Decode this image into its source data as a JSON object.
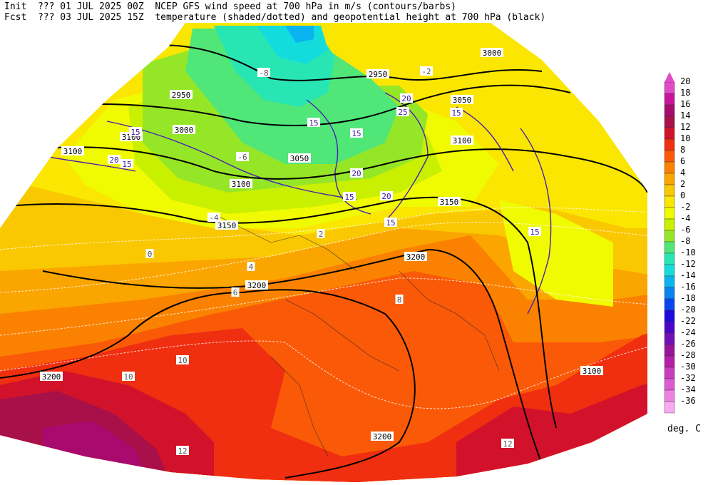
{
  "header": {
    "init_label": "Init",
    "init_value": "??? 01 JUL 2025 00Z",
    "fcst_label": "Fcst",
    "fcst_value": "??? 03 JUL 2025 15Z",
    "title_line1": "NCEP GFS wind speed at 700 hPa in m/s (contours/barbs)",
    "title_line2": "temperature (shaded/dotted) and geopotential height at 700 hPa (black)"
  },
  "colorbar": {
    "unit": "deg. C",
    "levels": [
      {
        "value": "20",
        "color": "#e04cc8"
      },
      {
        "value": "18",
        "color": "#c8159c"
      },
      {
        "value": "16",
        "color": "#a80a6e"
      },
      {
        "value": "14",
        "color": "#a8104a"
      },
      {
        "value": "12",
        "color": "#d2122a"
      },
      {
        "value": "10",
        "color": "#f02e10"
      },
      {
        "value": "8",
        "color": "#fa5a08"
      },
      {
        "value": "6",
        "color": "#fa8200"
      },
      {
        "value": "4",
        "color": "#faa500"
      },
      {
        "value": "2",
        "color": "#fac800"
      },
      {
        "value": "0",
        "color": "#fae600"
      },
      {
        "value": "-2",
        "color": "#f0fa00"
      },
      {
        "value": "-4",
        "color": "#c8f000"
      },
      {
        "value": "-6",
        "color": "#96e628"
      },
      {
        "value": "-8",
        "color": "#50e678"
      },
      {
        "value": "-10",
        "color": "#28e6b4"
      },
      {
        "value": "-12",
        "color": "#14dcdc"
      },
      {
        "value": "-14",
        "color": "#0ab4f0"
      },
      {
        "value": "-16",
        "color": "#0a82f0"
      },
      {
        "value": "-18",
        "color": "#0a46f0"
      },
      {
        "value": "-20",
        "color": "#1e0adc"
      },
      {
        "value": "-22",
        "color": "#4a06c8"
      },
      {
        "value": "-24",
        "color": "#7010b4"
      },
      {
        "value": "-26",
        "color": "#96149c"
      },
      {
        "value": "-28",
        "color": "#b41ea8"
      },
      {
        "value": "-30",
        "color": "#c83cc0"
      },
      {
        "value": "-32",
        "color": "#dc5ad2"
      },
      {
        "value": "-34",
        "color": "#ee82e2"
      },
      {
        "value": "-36",
        "color": "#f8aaf0"
      }
    ]
  },
  "height_contours": [
    {
      "label": "2950"
    },
    {
      "label": "3000"
    },
    {
      "label": "3050"
    },
    {
      "label": "3100"
    },
    {
      "label": "3150"
    },
    {
      "label": "3200"
    }
  ],
  "wind_labels": [
    "15",
    "20",
    "25"
  ],
  "temp_labels": [
    "-8",
    "-6",
    "-4",
    "-2",
    "0",
    "2",
    "4",
    "6",
    "8",
    "10",
    "12"
  ]
}
